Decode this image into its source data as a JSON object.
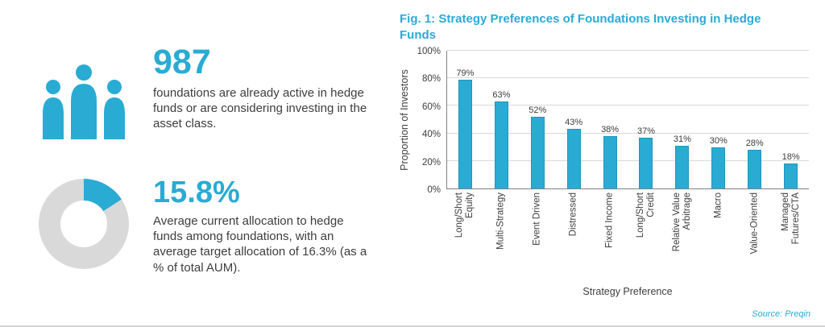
{
  "accent": "#29abd4",
  "left": {
    "stat1": {
      "value": "987",
      "description": "foundations are already active in hedge funds or are considering investing in the asset class."
    },
    "stat2": {
      "value": "15.8%",
      "donut_percent": 15.8,
      "donut_gray": "#d9d9d9",
      "description": "Average current allocation to hedge funds among foundations, with an average target allocation of 16.3% (as a % of total AUM)."
    }
  },
  "chart_data": {
    "type": "bar",
    "title": "Fig. 1: Strategy Preferences of Foundations Investing in Hedge Funds",
    "categories": [
      "Long/Short\nEquity",
      "Multi-Strategy",
      "Event Driven",
      "Distressed",
      "Fixed Income",
      "Long/Short\nCredit",
      "Relative Value\nArbitrage",
      "Macro",
      "Value-Oriented",
      "Managed\nFutures/CTA"
    ],
    "values": [
      79,
      63,
      52,
      43,
      38,
      37,
      31,
      30,
      28,
      18
    ],
    "value_label_suffix": "%",
    "xlabel": "Strategy Preference",
    "ylabel": "Proportion of Investors",
    "ylim": [
      0,
      100
    ],
    "yticks": [
      0,
      20,
      40,
      60,
      80,
      100
    ],
    "grid": true,
    "legend": "none",
    "bar_color": "#29abd4",
    "source": "Source: Preqin"
  }
}
